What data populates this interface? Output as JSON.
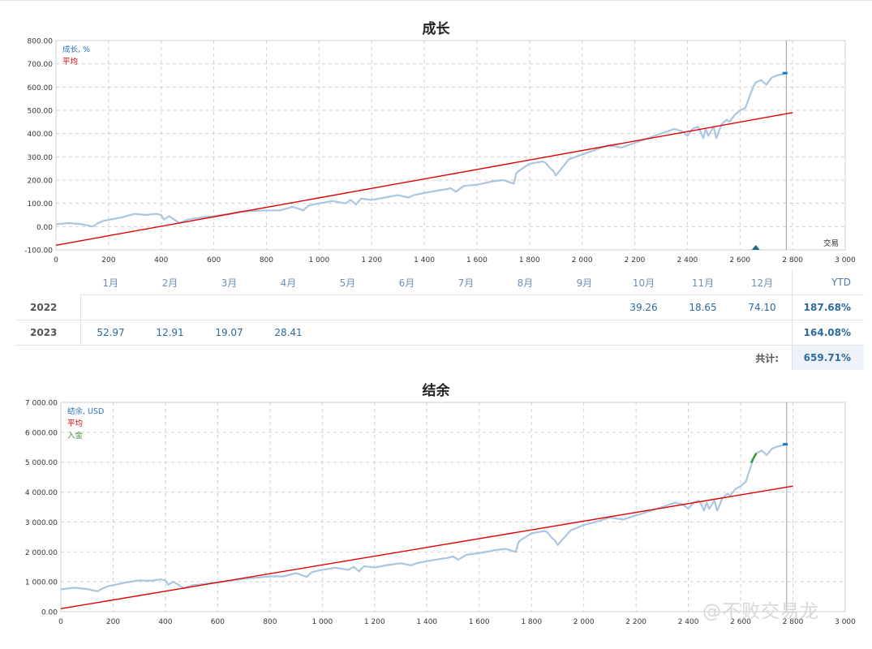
{
  "growth_section": {
    "title": "成长",
    "legend": [
      "成长, %",
      "平均"
    ],
    "y_ticks": [
      "800.00",
      "700.00",
      "600.00",
      "500.00",
      "400.00",
      "300.00",
      "200.00",
      "100.00",
      "0.00",
      "-100.00"
    ],
    "x_ticks": [
      "0",
      "200",
      "400",
      "600",
      "800",
      "1 000",
      "1 200",
      "1 400",
      "1 600",
      "1 800",
      "2 000",
      "2 200",
      "2 400",
      "2 600",
      "2 800",
      "3 000"
    ],
    "axis_label": "交易"
  },
  "monthly_table": {
    "months": [
      "1月",
      "2月",
      "3月",
      "4月",
      "5月",
      "6月",
      "7月",
      "8月",
      "9月",
      "10月",
      "11月",
      "12月"
    ],
    "ytd_header": "YTD",
    "rows": [
      {
        "year": "2022",
        "values": [
          "",
          "",
          "",
          "",
          "",
          "",
          "",
          "",
          "",
          "39.26",
          "18.65",
          "74.10"
        ],
        "ytd": "187.68%"
      },
      {
        "year": "2023",
        "values": [
          "52.97",
          "12.91",
          "19.07",
          "28.41",
          "",
          "",
          "",
          "",
          "",
          "",
          "",
          ""
        ],
        "ytd": "164.08%"
      }
    ],
    "total_label": "共计:",
    "total_value": "659.71%"
  },
  "balance_section": {
    "title": "结余",
    "legend": [
      "结余, USD",
      "平均",
      "入金"
    ],
    "y_ticks": [
      "7 000.00",
      "6 000.00",
      "5 000.00",
      "4 000.00",
      "3 000.00",
      "2 000.00",
      "1 000.00",
      "0.00"
    ],
    "x_ticks": [
      "0",
      "200",
      "400",
      "600",
      "800",
      "1 000",
      "1 200",
      "1 400",
      "1 600",
      "1 800",
      "2 000",
      "2 200",
      "2 400",
      "2 600",
      "2 800",
      "3 000"
    ]
  },
  "watermark": "@不败交易龙",
  "colors": {
    "series": "#aac6e0",
    "average": "#e00000",
    "deposit": "#3a9a3a",
    "endpoint": "#1b77d0",
    "grid": "#d0d0d0",
    "growth_legend": "#2a73c0",
    "deposit_legend": "#3a8a3a"
  },
  "chart_data": [
    {
      "type": "line",
      "title": "成长",
      "xlabel": "交易",
      "ylabel": "",
      "xlim": [
        0,
        3000
      ],
      "ylim": [
        -100,
        800
      ],
      "grid": true,
      "legend_position": "top-left",
      "series": [
        {
          "name": "成长, %",
          "x": [
            0,
            50,
            100,
            140,
            160,
            180,
            250,
            300,
            340,
            380,
            400,
            410,
            430,
            450,
            470,
            500,
            560,
            600,
            660,
            700,
            800,
            850,
            900,
            940,
            960,
            1000,
            1050,
            1100,
            1120,
            1140,
            1160,
            1200,
            1250,
            1300,
            1340,
            1360,
            1400,
            1450,
            1480,
            1500,
            1520,
            1550,
            1600,
            1640,
            1660,
            1700,
            1740,
            1750,
            1760,
            1800,
            1850,
            1860,
            1880,
            1890,
            1900,
            1950,
            2000,
            2050,
            2100,
            2150,
            2200,
            2250,
            2300,
            2350,
            2380,
            2400,
            2420,
            2440,
            2450,
            2460,
            2470,
            2480,
            2500,
            2510,
            2520,
            2530,
            2550,
            2560,
            2580,
            2600,
            2620,
            2630,
            2650,
            2660,
            2680,
            2700,
            2720,
            2740,
            2760,
            2780
          ],
          "values": [
            10,
            15,
            10,
            0,
            15,
            25,
            40,
            55,
            50,
            55,
            50,
            30,
            45,
            30,
            15,
            30,
            40,
            45,
            55,
            65,
            70,
            70,
            85,
            70,
            90,
            100,
            110,
            100,
            115,
            95,
            120,
            115,
            125,
            135,
            125,
            135,
            145,
            155,
            160,
            165,
            150,
            175,
            180,
            190,
            195,
            200,
            185,
            230,
            240,
            270,
            280,
            275,
            250,
            240,
            220,
            290,
            310,
            330,
            350,
            340,
            360,
            380,
            400,
            420,
            410,
            390,
            420,
            430,
            410,
            380,
            420,
            390,
            430,
            380,
            410,
            440,
            460,
            450,
            480,
            500,
            510,
            540,
            600,
            620,
            630,
            610,
            640,
            650,
            655,
            660
          ]
        },
        {
          "name": "平均",
          "x": [
            0,
            2800
          ],
          "values": [
            -80,
            490
          ]
        }
      ]
    },
    {
      "type": "line",
      "title": "结余",
      "xlabel": "",
      "ylabel": "",
      "xlim": [
        0,
        3000
      ],
      "ylim": [
        0,
        7000
      ],
      "grid": true,
      "legend_position": "top-left",
      "series": [
        {
          "name": "结余, USD",
          "x": [
            0,
            50,
            100,
            140,
            160,
            180,
            250,
            300,
            340,
            380,
            400,
            410,
            430,
            450,
            470,
            500,
            560,
            600,
            660,
            700,
            800,
            850,
            900,
            940,
            960,
            1000,
            1050,
            1100,
            1120,
            1140,
            1160,
            1200,
            1250,
            1300,
            1340,
            1360,
            1400,
            1450,
            1480,
            1500,
            1520,
            1550,
            1600,
            1640,
            1660,
            1700,
            1740,
            1750,
            1760,
            1800,
            1850,
            1860,
            1880,
            1890,
            1900,
            1950,
            2000,
            2050,
            2100,
            2150,
            2200,
            2250,
            2300,
            2350,
            2380,
            2400,
            2420,
            2440,
            2450,
            2460,
            2470,
            2480,
            2500,
            2510,
            2520,
            2530,
            2550,
            2560,
            2580,
            2600,
            2620,
            2630,
            2650,
            2660,
            2680,
            2700,
            2720,
            2740,
            2760,
            2780
          ],
          "values": [
            750,
            800,
            760,
            680,
            780,
            850,
            980,
            1050,
            1030,
            1080,
            1050,
            900,
            1000,
            900,
            780,
            880,
            940,
            980,
            1050,
            1100,
            1180,
            1180,
            1290,
            1160,
            1320,
            1400,
            1470,
            1400,
            1500,
            1350,
            1520,
            1480,
            1560,
            1620,
            1550,
            1620,
            1690,
            1760,
            1800,
            1850,
            1740,
            1900,
            1960,
            2020,
            2060,
            2100,
            2000,
            2320,
            2400,
            2620,
            2700,
            2660,
            2450,
            2380,
            2230,
            2720,
            2900,
            3010,
            3150,
            3080,
            3220,
            3360,
            3500,
            3650,
            3580,
            3440,
            3650,
            3720,
            3580,
            3380,
            3650,
            3440,
            3720,
            3380,
            3580,
            3800,
            3950,
            3880,
            4100,
            4200,
            4350,
            4620,
            5150,
            5300,
            5390,
            5240,
            5450,
            5520,
            5560,
            5600
          ]
        },
        {
          "name": "平均",
          "x": [
            0,
            2800
          ],
          "values": [
            100,
            4200
          ]
        },
        {
          "name": "入金",
          "x": [
            2640,
            2650,
            2660
          ],
          "values": [
            4980,
            5150,
            5300
          ]
        }
      ]
    }
  ]
}
